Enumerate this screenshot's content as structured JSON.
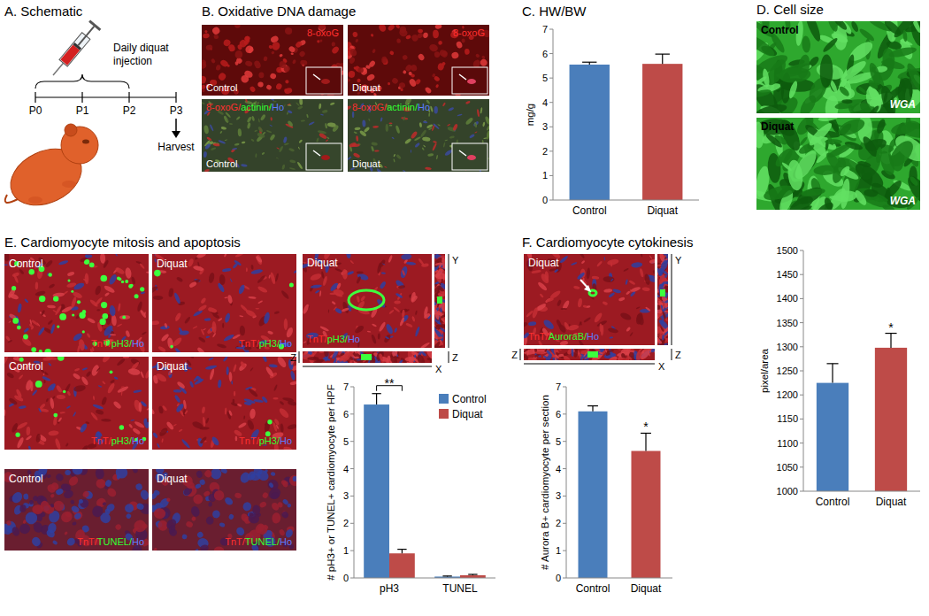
{
  "panels": {
    "a": {
      "title": "A. Schematic",
      "label": [
        "Daily diquat",
        "injection"
      ],
      "timepoints": [
        "P0",
        "P1",
        "P2",
        "P3"
      ],
      "harvest": "Harvest"
    },
    "b": {
      "title": "B. Oxidative DNA damage",
      "images": [
        {
          "group": "Control",
          "stain": "8-oxoG"
        },
        {
          "group": "Diquat",
          "stain": "8-oxoG"
        },
        {
          "group": "Control",
          "stain": "8-oxoG/actinin/Ho"
        },
        {
          "group": "Diquat",
          "stain": "8-oxoG/actinin/Ho"
        }
      ]
    },
    "c": {
      "title": "C. HW/BW"
    },
    "d": {
      "title": "D. Cell size",
      "images": [
        {
          "group": "Control",
          "stain": "WGA"
        },
        {
          "group": "Diquat",
          "stain": "WGA"
        }
      ]
    },
    "e": {
      "title": "E. Cardiomyocyte mitosis and apoptosis",
      "images": [
        {
          "group": "Control",
          "stain": "TnT/pH3/Ho"
        },
        {
          "group": "Diquat",
          "stain": "TnT/pH3/Ho"
        },
        {
          "group": "Control",
          "stain": "TnT/pH3/Ho"
        },
        {
          "group": "Diquat",
          "stain": "TnT/pH3/Ho"
        },
        {
          "group": "Control",
          "stain": "TnT/TUNEL/Ho"
        },
        {
          "group": "Diquat",
          "stain": "TnT/TUNEL/Ho"
        }
      ],
      "confocal": {
        "group": "Diquat",
        "stain": "TnT/pH3/Ho",
        "axes": [
          "Y",
          "Z",
          "X"
        ]
      }
    },
    "f": {
      "title": "F. Cardiomyocyte cytokinesis",
      "confocal": {
        "group": "Diquat",
        "stain": "TnT/AuroraB/Ho",
        "axes": [
          "Y",
          "Z",
          "X"
        ]
      }
    }
  },
  "chart_data": [
    {
      "type": "bar",
      "ylabel": "mg/g",
      "categories": [
        "Control",
        "Diquat"
      ],
      "values": [
        5.55,
        5.58
      ],
      "errors": [
        0.1,
        0.4
      ],
      "colors": [
        "#4a7ebb",
        "#be4b48"
      ],
      "ylim": [
        0,
        7
      ],
      "yticks": [
        0,
        1,
        2,
        3,
        4,
        5,
        6,
        7
      ]
    },
    {
      "type": "bar",
      "ylabel": "pixel/area",
      "categories": [
        "Control",
        "Diquat"
      ],
      "values": [
        1225,
        1298
      ],
      "errors": [
        40,
        30
      ],
      "colors": [
        "#4a7ebb",
        "#be4b48"
      ],
      "ylim": [
        1000,
        1500
      ],
      "yticks": [
        1000,
        1050,
        1100,
        1150,
        1200,
        1250,
        1300,
        1350,
        1400,
        1450,
        1500
      ],
      "annotations": [
        {
          "text": "*",
          "index": 1
        }
      ]
    },
    {
      "type": "bar",
      "ylabel": "# pH3+ or TUNEL+ cardiomyocyte per HPF",
      "categories": [
        "pH3",
        "TUNEL"
      ],
      "series": [
        {
          "name": "Control",
          "color": "#4a7ebb",
          "values": [
            6.35,
            0.05
          ],
          "errors": [
            0.4,
            0.02
          ]
        },
        {
          "name": "Diquat",
          "color": "#be4b48",
          "values": [
            0.9,
            0.1
          ],
          "errors": [
            0.15,
            0.03
          ]
        }
      ],
      "ylim": [
        0,
        7
      ],
      "yticks": [
        0,
        1,
        2,
        3,
        4,
        5,
        6,
        7
      ],
      "legend": "top-right",
      "annotations": [
        {
          "text": "**",
          "index": 0
        }
      ]
    },
    {
      "type": "bar",
      "ylabel": "# Aurora B+ cardiomyocyte per section",
      "categories": [
        "Control",
        "Diquat"
      ],
      "values": [
        6.1,
        4.65
      ],
      "errors": [
        0.2,
        0.65
      ],
      "colors": [
        "#4a7ebb",
        "#be4b48"
      ],
      "ylim": [
        0,
        7
      ],
      "yticks": [
        0,
        1,
        2,
        3,
        4,
        5,
        6,
        7
      ],
      "annotations": [
        {
          "text": "*",
          "index": 1
        }
      ]
    }
  ]
}
